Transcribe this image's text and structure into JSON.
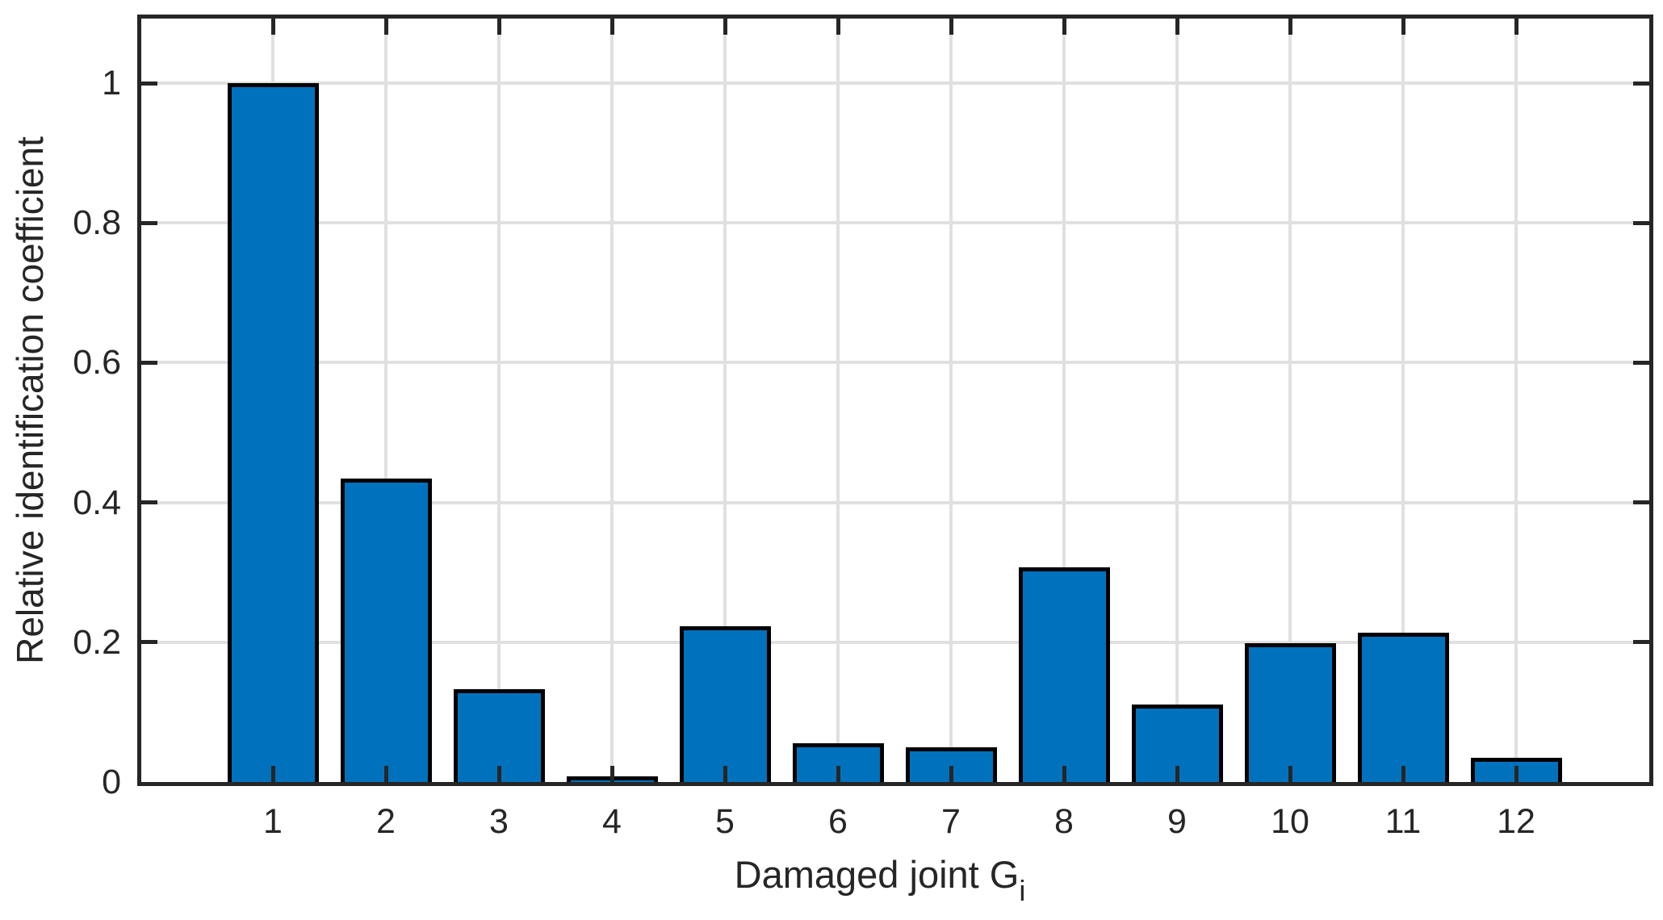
{
  "chart_data": {
    "type": "bar",
    "title": "",
    "xlabel": "Damaged joint G",
    "xlabel_subscript": "i",
    "ylabel": "Relative identification coefficient",
    "categories": [
      "1",
      "2",
      "3",
      "4",
      "5",
      "6",
      "7",
      "8",
      "9",
      "10",
      "11",
      "12"
    ],
    "values": [
      1.0,
      0.434,
      0.133,
      0.008,
      0.223,
      0.056,
      0.05,
      0.307,
      0.111,
      0.199,
      0.214,
      0.035
    ],
    "series_name": "Relative identification coefficient",
    "yticks": [
      0,
      0.2,
      0.4,
      0.6,
      0.8,
      1
    ],
    "ytick_labels": [
      "0",
      "0.2",
      "0.4",
      "0.6",
      "0.8",
      "1"
    ],
    "ylim": [
      0,
      1.1
    ],
    "grid": true,
    "legend": "none",
    "bar_color": "#0072BD",
    "bar_edge_color": "#000000",
    "axis_color": "#262626",
    "grid_color": "#e0e0e0",
    "background_color": "#ffffff"
  }
}
